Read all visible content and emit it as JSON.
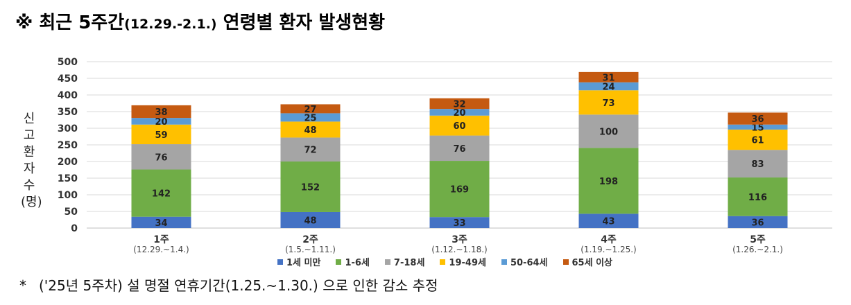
{
  "title": {
    "prefix": "※ 최근 5주간",
    "range": "(12.29.-2.1.)",
    "suffix": " 연령별 환자 발생현황"
  },
  "footnote": {
    "mark": "*",
    "text": "('25년 5주차) 설 명절 연휴기간(1.25.~1.30.) 으로 인한 감소 추정"
  },
  "chart_data": {
    "type": "bar",
    "stacked": true,
    "ylabel": "신고환자 수(명)",
    "ylim": [
      0,
      500
    ],
    "yticks": [
      0,
      50,
      100,
      150,
      200,
      250,
      300,
      350,
      400,
      450,
      500
    ],
    "grid": true,
    "legend_position": "bottom",
    "categories": [
      "1주",
      "2주",
      "3주",
      "4주",
      "5주"
    ],
    "category_sublabels": [
      "(12.29.~1.4.)",
      "(1.5.~1.11.)",
      "(1.12.~1.18.)",
      "(1.19.~1.25.)",
      "(1.26.~2.1.)"
    ],
    "series": [
      {
        "name": "1세 미만",
        "color": "#4472c4",
        "values": [
          34,
          48,
          33,
          43,
          36
        ]
      },
      {
        "name": "1-6세",
        "color": "#70ad47",
        "values": [
          142,
          152,
          169,
          198,
          116
        ]
      },
      {
        "name": "7-18세",
        "color": "#a5a5a5",
        "values": [
          76,
          72,
          76,
          100,
          83
        ]
      },
      {
        "name": "19-49세",
        "color": "#ffc000",
        "values": [
          59,
          48,
          60,
          73,
          61
        ]
      },
      {
        "name": "50-64세",
        "color": "#5b9bd5",
        "values": [
          20,
          25,
          20,
          24,
          15
        ]
      },
      {
        "name": "65세 이상",
        "color": "#c55a11",
        "values": [
          38,
          27,
          32,
          31,
          36
        ]
      }
    ]
  }
}
